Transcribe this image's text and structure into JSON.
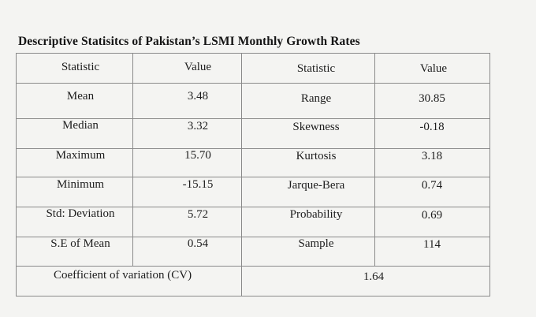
{
  "title": "Descriptive Statisitcs of Pakistan’s LSMI Monthly Growth Rates",
  "headers": [
    "Statistic",
    "Value",
    "Statistic",
    "Value"
  ],
  "rows": [
    [
      "Mean",
      "3.48",
      "Range",
      "30.85"
    ],
    [
      "Median",
      "3.32",
      "Skewness",
      "-0.18"
    ],
    [
      "Maximum",
      "15.70",
      "Kurtosis",
      "3.18"
    ],
    [
      "Minimum",
      "-15.15",
      "Jarque-Bera",
      "0.74"
    ],
    [
      "Std: Deviation",
      "5.72",
      "Probability",
      "0.69"
    ],
    [
      "S.E of Mean",
      "0.54",
      "Sample",
      "114"
    ]
  ],
  "footer": {
    "label": "Coefficient of variation (CV)",
    "value": "1.64"
  }
}
